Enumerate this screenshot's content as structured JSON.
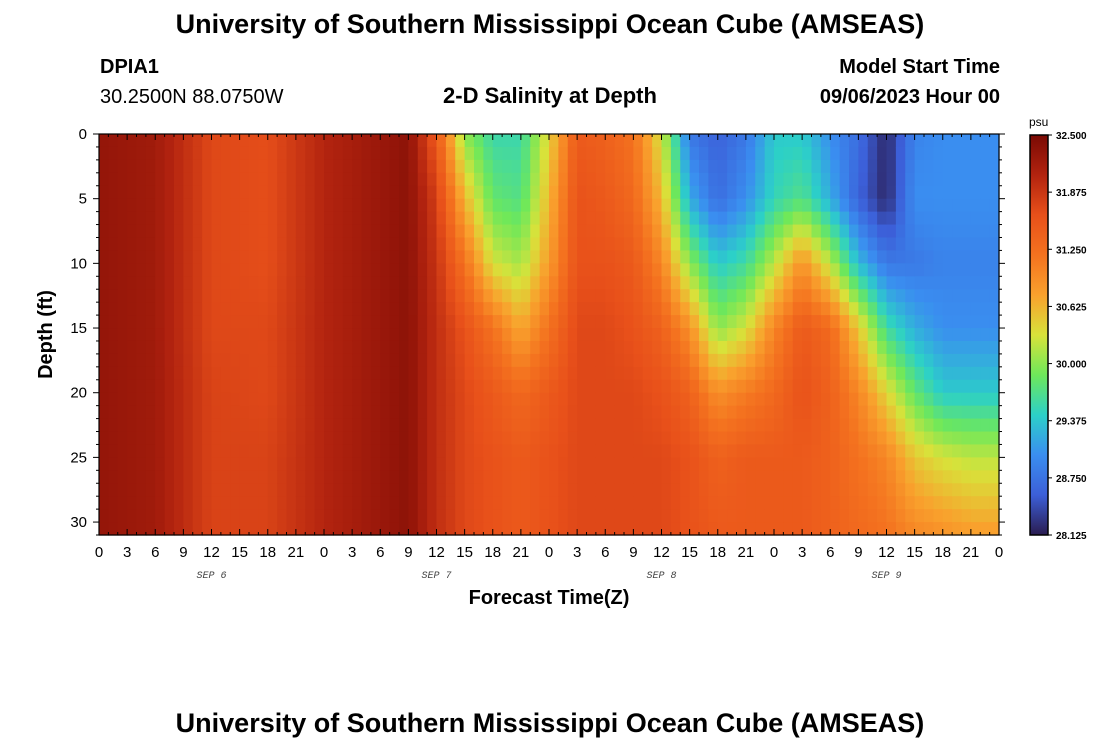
{
  "header": {
    "title": "University of Southern Mississippi Ocean Cube (AMSEAS)",
    "station_id": "DPIA1",
    "station_coords": "30.2500N  88.0750W",
    "plot_title": "2-D Salinity at Depth",
    "model_start_label": "Model Start Time",
    "model_start_value": "09/06/2023 Hour 00"
  },
  "footer": {
    "title": "University of Southern Mississippi Ocean Cube (AMSEAS)"
  },
  "chart_data": {
    "type": "heatmap",
    "title": "2-D Salinity at Depth",
    "xlabel": "Forecast Time(Z)",
    "ylabel": "Depth (ft)",
    "x_unit": "forecast hour",
    "xlim": [
      0,
      96
    ],
    "ylim": [
      0,
      31
    ],
    "y_inverted": true,
    "x_ticks": [
      0,
      3,
      6,
      9,
      12,
      15,
      18,
      21,
      24,
      27,
      30,
      33,
      36,
      39,
      42,
      45,
      48,
      51,
      54,
      57,
      60,
      63,
      66,
      69,
      72,
      75,
      78,
      81,
      84,
      87,
      90,
      93,
      96
    ],
    "x_tick_labels": [
      "0",
      "3",
      "6",
      "9",
      "12",
      "15",
      "18",
      "21",
      "0",
      "3",
      "6",
      "9",
      "12",
      "15",
      "18",
      "21",
      "0",
      "3",
      "6",
      "9",
      "12",
      "15",
      "18",
      "21",
      "0",
      "3",
      "6",
      "9",
      "12",
      "15",
      "18",
      "21",
      "0"
    ],
    "y_ticks": [
      0,
      5,
      10,
      15,
      20,
      25,
      30
    ],
    "y_tick_labels": [
      "0",
      "5",
      "10",
      "15",
      "20",
      "25",
      "30"
    ],
    "day_labels": [
      {
        "hour": 12,
        "label": "SEP 6"
      },
      {
        "hour": 36,
        "label": "SEP 7"
      },
      {
        "hour": 60,
        "label": "SEP 8"
      },
      {
        "hour": 84,
        "label": "SEP 9"
      }
    ],
    "colorbar": {
      "unit": "psu",
      "min": 28.125,
      "max": 32.5,
      "tick_values": [
        32.5,
        31.875,
        31.25,
        30.625,
        30.0,
        29.375,
        28.75,
        28.125
      ],
      "tick_labels": [
        "32.500",
        "31.875",
        "31.250",
        "30.625",
        "30.000",
        "29.375",
        "28.750",
        "28.125"
      ],
      "colormap": [
        "#2a1c50",
        "#3c5fd8",
        "#3a8ef0",
        "#2cd0c8",
        "#6ee85a",
        "#d8e23a",
        "#f9a12d",
        "#f4721f",
        "#e8501a",
        "#b2230f",
        "#7a0a04"
      ]
    },
    "depths_ft": [
      0,
      5,
      10,
      15,
      20,
      25,
      31
    ],
    "hours": [
      0,
      6,
      12,
      18,
      24,
      30,
      33,
      36,
      39,
      42,
      45,
      48,
      51,
      54,
      57,
      60,
      63,
      66,
      69,
      72,
      75,
      78,
      81,
      84,
      87,
      90,
      93,
      96
    ],
    "salinity_psu": [
      [
        32.3,
        32.3,
        32.3,
        32.3,
        32.3,
        32.3,
        32.3
      ],
      [
        32.2,
        32.2,
        32.2,
        32.2,
        32.2,
        32.2,
        32.2
      ],
      [
        31.7,
        31.7,
        31.7,
        31.7,
        31.75,
        31.75,
        31.75
      ],
      [
        31.65,
        31.65,
        31.65,
        31.7,
        31.7,
        31.75,
        31.75
      ],
      [
        32.05,
        32.05,
        32.05,
        32.05,
        32.05,
        32.05,
        32.05
      ],
      [
        32.25,
        32.25,
        32.25,
        32.25,
        32.25,
        32.25,
        32.25
      ],
      [
        32.35,
        32.35,
        32.35,
        32.35,
        32.35,
        32.35,
        32.35
      ],
      [
        31.5,
        31.8,
        31.9,
        31.95,
        31.95,
        31.95,
        31.95
      ],
      [
        30.0,
        30.6,
        31.2,
        31.6,
        31.7,
        31.7,
        31.7
      ],
      [
        29.55,
        29.8,
        30.3,
        31.2,
        31.5,
        31.6,
        31.6
      ],
      [
        29.55,
        29.7,
        30.1,
        30.7,
        31.3,
        31.5,
        31.5
      ],
      [
        30.4,
        30.6,
        30.8,
        31.2,
        31.5,
        31.6,
        31.6
      ],
      [
        31.5,
        31.6,
        31.6,
        31.7,
        31.7,
        31.7,
        31.7
      ],
      [
        31.4,
        31.5,
        31.6,
        31.7,
        31.7,
        31.7,
        31.7
      ],
      [
        31.2,
        31.3,
        31.5,
        31.6,
        31.7,
        31.7,
        31.7
      ],
      [
        30.3,
        30.6,
        31.0,
        31.4,
        31.6,
        31.7,
        31.7
      ],
      [
        28.8,
        29.2,
        30.0,
        30.9,
        31.4,
        31.6,
        31.6
      ],
      [
        28.6,
        28.7,
        29.4,
        30.0,
        30.9,
        31.4,
        31.5
      ],
      [
        28.8,
        29.0,
        29.6,
        30.3,
        31.1,
        31.5,
        31.5
      ],
      [
        29.4,
        29.5,
        30.2,
        31.0,
        31.3,
        31.5,
        31.5
      ],
      [
        29.4,
        29.7,
        30.9,
        31.5,
        31.6,
        31.5,
        31.5
      ],
      [
        29.0,
        29.2,
        30.2,
        31.3,
        31.4,
        31.4,
        31.4
      ],
      [
        28.7,
        28.6,
        29.3,
        30.5,
        31.0,
        31.2,
        31.3
      ],
      [
        28.2,
        28.2,
        28.8,
        29.6,
        30.4,
        31.0,
        31.2
      ],
      [
        28.9,
        29.0,
        28.8,
        29.2,
        29.8,
        30.5,
        31.0
      ],
      [
        29.0,
        29.0,
        28.9,
        29.0,
        29.4,
        30.3,
        30.9
      ],
      [
        29.0,
        29.0,
        28.9,
        29.0,
        29.4,
        30.2,
        30.8
      ],
      [
        29.0,
        29.0,
        28.9,
        29.0,
        29.4,
        30.2,
        30.8
      ]
    ]
  }
}
